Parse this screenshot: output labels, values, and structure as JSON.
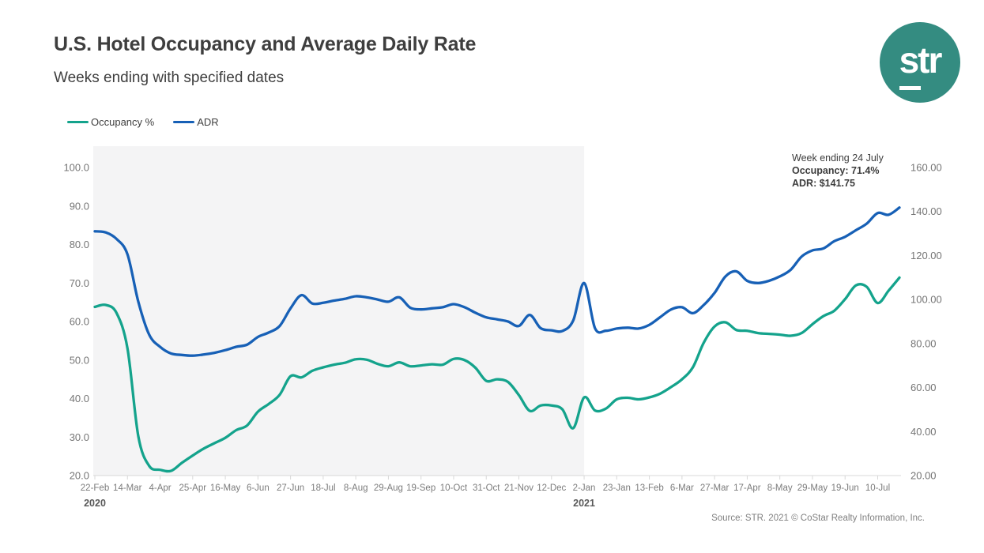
{
  "header": {
    "title": "U.S. Hotel Occupancy and Average Daily Rate",
    "subtitle": "Weeks ending with specified dates"
  },
  "logo": {
    "text": "str",
    "bg_color": "#348C81",
    "text_color": "#ffffff"
  },
  "legend": [
    {
      "label": "Occupancy %",
      "color": "#14A38C"
    },
    {
      "label": "ADR",
      "color": "#1760B6"
    }
  ],
  "annotation": {
    "line1": "Week ending 24 July",
    "line2": "Occupancy: 71.4%",
    "line3": "ADR: $141.75"
  },
  "source": "Source: STR. 2021 © CoStar Realty Information, Inc.",
  "chart_data": {
    "type": "line",
    "title": "U.S. Hotel Occupancy and Average Daily Rate",
    "subtitle": "Weeks ending with specified dates",
    "grid": false,
    "legend_position": "top-left",
    "left_axis": {
      "label": "Occupancy %",
      "range": [
        20,
        100
      ],
      "ticks": [
        "100.0",
        "90.0",
        "80.0",
        "70.0",
        "60.0",
        "50.0",
        "40.0",
        "30.0",
        "20.0"
      ],
      "tick_values": [
        100,
        90,
        80,
        70,
        60,
        50,
        40,
        30,
        20
      ]
    },
    "right_axis": {
      "label": "ADR",
      "range": [
        20,
        160
      ],
      "ticks": [
        "160.00",
        "140.00",
        "120.00",
        "100.00",
        "80.00",
        "60.00",
        "40.00",
        "20.00"
      ],
      "tick_values": [
        160,
        140,
        120,
        100,
        80,
        60,
        40,
        20
      ]
    },
    "x_tick_labels": [
      "22-Feb",
      "14-Mar",
      "4-Apr",
      "25-Apr",
      "16-May",
      "6-Jun",
      "27-Jun",
      "18-Jul",
      "8-Aug",
      "29-Aug",
      "19-Sep",
      "10-Oct",
      "31-Oct",
      "21-Nov",
      "12-Dec",
      "2-Jan",
      "23-Jan",
      "13-Feb",
      "6-Mar",
      "27-Mar",
      "17-Apr",
      "8-May",
      "29-May",
      "19-Jun",
      "10-Jul"
    ],
    "x_tick_every_n_weeks": 3,
    "year_labels": [
      {
        "label": "2020",
        "tick_index": 0
      },
      {
        "label": "2021",
        "tick_index": 15
      }
    ],
    "shaded_region": {
      "from_week_index": 0,
      "to_week_index": 45,
      "color": "#F4F4F5",
      "note": "2020 portion shaded light gray"
    },
    "dates": [
      "22-Feb-2020",
      "29-Feb-2020",
      "7-Mar-2020",
      "14-Mar-2020",
      "21-Mar-2020",
      "28-Mar-2020",
      "4-Apr-2020",
      "11-Apr-2020",
      "18-Apr-2020",
      "25-Apr-2020",
      "2-May-2020",
      "9-May-2020",
      "16-May-2020",
      "23-May-2020",
      "30-May-2020",
      "6-Jun-2020",
      "13-Jun-2020",
      "20-Jun-2020",
      "27-Jun-2020",
      "4-Jul-2020",
      "11-Jul-2020",
      "18-Jul-2020",
      "25-Jul-2020",
      "1-Aug-2020",
      "8-Aug-2020",
      "15-Aug-2020",
      "22-Aug-2020",
      "29-Aug-2020",
      "5-Sep-2020",
      "12-Sep-2020",
      "19-Sep-2020",
      "26-Sep-2020",
      "3-Oct-2020",
      "10-Oct-2020",
      "17-Oct-2020",
      "24-Oct-2020",
      "31-Oct-2020",
      "7-Nov-2020",
      "14-Nov-2020",
      "21-Nov-2020",
      "28-Nov-2020",
      "5-Dec-2020",
      "12-Dec-2020",
      "19-Dec-2020",
      "26-Dec-2020",
      "2-Jan-2021",
      "9-Jan-2021",
      "16-Jan-2021",
      "23-Jan-2021",
      "30-Jan-2021",
      "6-Feb-2021",
      "13-Feb-2021",
      "20-Feb-2021",
      "27-Feb-2021",
      "6-Mar-2021",
      "13-Mar-2021",
      "20-Mar-2021",
      "27-Mar-2021",
      "3-Apr-2021",
      "10-Apr-2021",
      "17-Apr-2021",
      "24-Apr-2021",
      "1-May-2021",
      "8-May-2021",
      "15-May-2021",
      "22-May-2021",
      "29-May-2021",
      "5-Jun-2021",
      "12-Jun-2021",
      "19-Jun-2021",
      "26-Jun-2021",
      "3-Jul-2021",
      "10-Jul-2021",
      "17-Jul-2021",
      "24-Jul-2021"
    ],
    "series": [
      {
        "name": "Occupancy %",
        "axis": "left",
        "color": "#14A38C",
        "values": [
          63.8,
          64.3,
          62.2,
          53.0,
          30.2,
          22.5,
          21.5,
          21.2,
          23.3,
          25.2,
          27.0,
          28.4,
          29.8,
          31.8,
          33.0,
          36.6,
          38.6,
          41.0,
          45.8,
          45.5,
          47.2,
          48.1,
          48.8,
          49.3,
          50.2,
          50.1,
          49.0,
          48.4,
          49.4,
          48.4,
          48.6,
          48.9,
          48.8,
          50.3,
          50.0,
          48.0,
          44.6,
          45.0,
          44.3,
          40.9,
          36.8,
          38.2,
          38.2,
          37.2,
          32.3,
          40.3,
          36.9,
          37.4,
          39.8,
          40.2,
          39.8,
          40.3,
          41.3,
          43.0,
          45.0,
          48.1,
          54.5,
          58.7,
          59.8,
          57.8,
          57.6,
          57.0,
          56.8,
          56.6,
          56.3,
          57.0,
          59.3,
          61.4,
          62.8,
          65.8,
          69.4,
          69.0,
          64.8,
          68.0,
          71.4
        ]
      },
      {
        "name": "ADR",
        "axis": "right",
        "color": "#1760B6",
        "values": [
          131.0,
          130.5,
          127.5,
          120.5,
          99.0,
          84.0,
          78.5,
          75.5,
          74.8,
          74.5,
          75.0,
          75.8,
          77.0,
          78.5,
          79.5,
          83.0,
          85.0,
          88.0,
          96.0,
          102.0,
          98.2,
          98.5,
          99.5,
          100.3,
          101.5,
          101.0,
          100.0,
          99.0,
          101.0,
          96.3,
          95.5,
          96.0,
          96.5,
          97.9,
          96.5,
          94.0,
          91.9,
          91.0,
          90.0,
          88.0,
          93.0,
          87.0,
          86.0,
          85.7,
          90.5,
          107.5,
          87.0,
          85.8,
          86.8,
          87.2,
          86.8,
          88.5,
          92.0,
          95.5,
          96.5,
          93.8,
          97.5,
          103.0,
          110.5,
          112.8,
          108.5,
          107.5,
          108.5,
          110.5,
          113.5,
          119.5,
          122.3,
          123.2,
          126.5,
          128.5,
          131.5,
          134.5,
          139.3,
          138.5,
          141.75
        ]
      }
    ],
    "highlight_point": {
      "date": "24-Jul-2021",
      "occupancy": 71.4,
      "adr": 141.75
    }
  },
  "style": {
    "axis_line_color": "#D8D8D8",
    "axis_num_color": "#757575",
    "x_label_color": "#7C7C7C",
    "year_label_color": "#595959"
  }
}
